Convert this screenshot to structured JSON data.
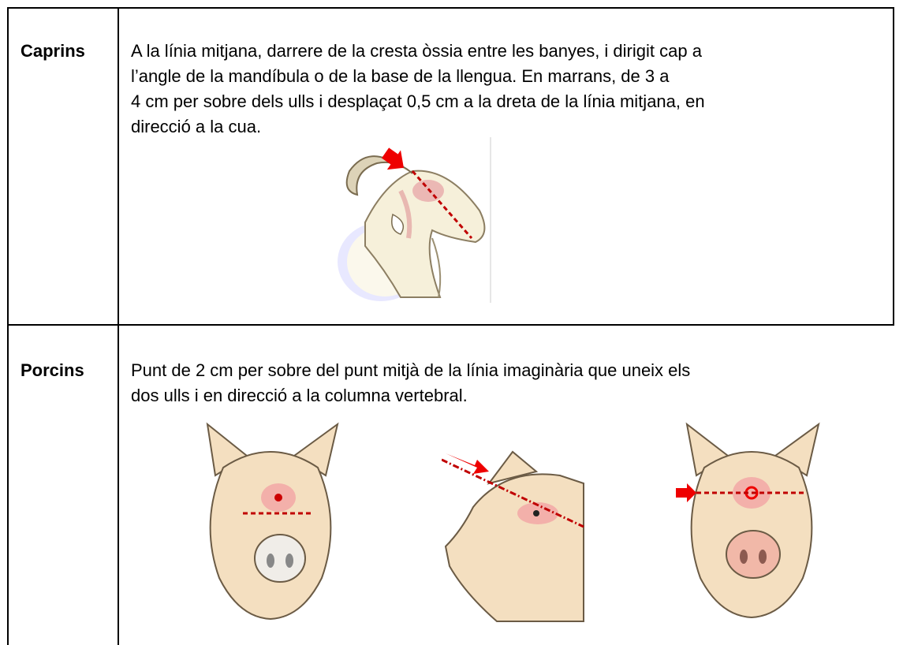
{
  "rows": [
    {
      "label": "Caprins",
      "text_lines": [
        "A la línia mitjana, darrere de la cresta òssia entre les banyes, i dirigit cap a",
        "l’angle de la mandíbula o de la base de la llengua. En marrans, de 3 a",
        "4 cm per sobre dels ulls i desplaçat 0,5 cm a la dreta de la línia mitjana, en",
        "direcció a la cua."
      ]
    },
    {
      "label": "Porcins",
      "text_lines": [
        "Punt de 2 cm per sobre del punt mitjà de la línia imaginària que uneix els",
        "dos ulls i en direcció a la columna vertebral."
      ]
    }
  ]
}
